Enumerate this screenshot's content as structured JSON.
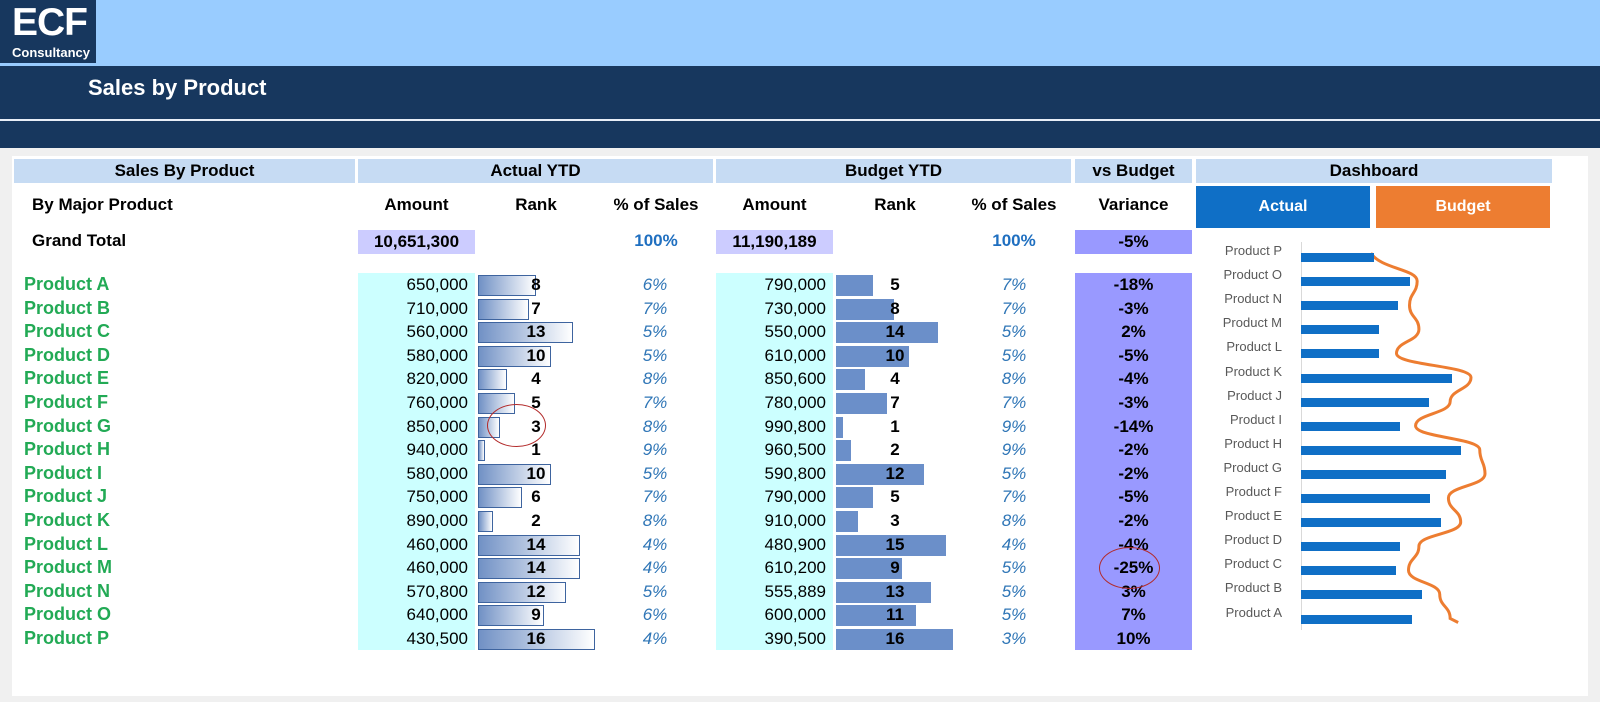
{
  "logo": {
    "big": "ECF",
    "small": "Consultancy"
  },
  "title": "Sales by Product",
  "bands": {
    "sales_by_product": "Sales By Product",
    "actual_ytd": "Actual YTD",
    "budget_ytd": "Budget YTD",
    "vs_budget": "vs Budget",
    "dashboard": "Dashboard"
  },
  "columns": {
    "by_major_product": "By Major Product",
    "actual_amount": "Amount",
    "actual_rank": "Rank",
    "actual_pct": "% of Sales",
    "budget_amount": "Amount",
    "budget_rank": "Rank",
    "budget_pct": "% of Sales",
    "variance": "Variance"
  },
  "buttons": {
    "actual": "Actual",
    "budget": "Budget"
  },
  "colors": {
    "actual_button": "#0f6fc6",
    "budget_button": "#ed7d31",
    "chart_bar": "#0f6fc6",
    "chart_line": "#ed7d31",
    "product_name": "#22aa55"
  },
  "grand_total": {
    "label": "Grand Total",
    "actual_amount": "10,651,300",
    "actual_pct": "100%",
    "budget_amount": "11,190,189",
    "budget_pct": "100%",
    "variance": "-5%"
  },
  "products": [
    {
      "name": "Product A",
      "actual": "650,000",
      "actual_rank": "8",
      "actual_pct": "6%",
      "budget": "790,000",
      "budget_rank": "5",
      "budget_pct": "7%",
      "variance": "-18%"
    },
    {
      "name": "Product B",
      "actual": "710,000",
      "actual_rank": "7",
      "actual_pct": "7%",
      "budget": "730,000",
      "budget_rank": "8",
      "budget_pct": "7%",
      "variance": "-3%"
    },
    {
      "name": "Product C",
      "actual": "560,000",
      "actual_rank": "13",
      "actual_pct": "5%",
      "budget": "550,000",
      "budget_rank": "14",
      "budget_pct": "5%",
      "variance": "2%"
    },
    {
      "name": "Product D",
      "actual": "580,000",
      "actual_rank": "10",
      "actual_pct": "5%",
      "budget": "610,000",
      "budget_rank": "10",
      "budget_pct": "5%",
      "variance": "-5%"
    },
    {
      "name": "Product E",
      "actual": "820,000",
      "actual_rank": "4",
      "actual_pct": "8%",
      "budget": "850,600",
      "budget_rank": "4",
      "budget_pct": "8%",
      "variance": "-4%"
    },
    {
      "name": "Product F",
      "actual": "760,000",
      "actual_rank": "5",
      "actual_pct": "7%",
      "budget": "780,000",
      "budget_rank": "7",
      "budget_pct": "7%",
      "variance": "-3%"
    },
    {
      "name": "Product G",
      "actual": "850,000",
      "actual_rank": "3",
      "actual_pct": "8%",
      "budget": "990,800",
      "budget_rank": "1",
      "budget_pct": "9%",
      "variance": "-14%"
    },
    {
      "name": "Product H",
      "actual": "940,000",
      "actual_rank": "1",
      "actual_pct": "9%",
      "budget": "960,500",
      "budget_rank": "2",
      "budget_pct": "9%",
      "variance": "-2%"
    },
    {
      "name": "Product I",
      "actual": "580,000",
      "actual_rank": "10",
      "actual_pct": "5%",
      "budget": "590,800",
      "budget_rank": "12",
      "budget_pct": "5%",
      "variance": "-2%"
    },
    {
      "name": "Product J",
      "actual": "750,000",
      "actual_rank": "6",
      "actual_pct": "7%",
      "budget": "790,000",
      "budget_rank": "5",
      "budget_pct": "7%",
      "variance": "-5%"
    },
    {
      "name": "Product K",
      "actual": "890,000",
      "actual_rank": "2",
      "actual_pct": "8%",
      "budget": "910,000",
      "budget_rank": "3",
      "budget_pct": "8%",
      "variance": "-2%"
    },
    {
      "name": "Product L",
      "actual": "460,000",
      "actual_rank": "14",
      "actual_pct": "4%",
      "budget": "480,900",
      "budget_rank": "15",
      "budget_pct": "4%",
      "variance": "-4%"
    },
    {
      "name": "Product M",
      "actual": "460,000",
      "actual_rank": "14",
      "actual_pct": "4%",
      "budget": "610,200",
      "budget_rank": "9",
      "budget_pct": "5%",
      "variance": "-25%"
    },
    {
      "name": "Product N",
      "actual": "570,800",
      "actual_rank": "12",
      "actual_pct": "5%",
      "budget": "555,889",
      "budget_rank": "13",
      "budget_pct": "5%",
      "variance": "3%"
    },
    {
      "name": "Product O",
      "actual": "640,000",
      "actual_rank": "9",
      "actual_pct": "6%",
      "budget": "600,000",
      "budget_rank": "11",
      "budget_pct": "5%",
      "variance": "7%"
    },
    {
      "name": "Product P",
      "actual": "430,500",
      "actual_rank": "16",
      "actual_pct": "4%",
      "budget": "390,500",
      "budget_rank": "16",
      "budget_pct": "3%",
      "variance": "10%"
    }
  ],
  "chart_data": {
    "type": "bar",
    "orientation": "horizontal",
    "categories": [
      "Product P",
      "Product O",
      "Product N",
      "Product M",
      "Product L",
      "Product K",
      "Product J",
      "Product I",
      "Product H",
      "Product G",
      "Product F",
      "Product E",
      "Product D",
      "Product C",
      "Product B",
      "Product A"
    ],
    "series": [
      {
        "values": [
          430500,
          640000,
          570800,
          460000,
          460000,
          890000,
          750000,
          580000,
          940000,
          850000,
          760000,
          820000,
          580000,
          560000,
          710000,
          650000
        ]
      }
    ],
    "overlay_curve": true,
    "axes_visible": false,
    "grid": false
  }
}
